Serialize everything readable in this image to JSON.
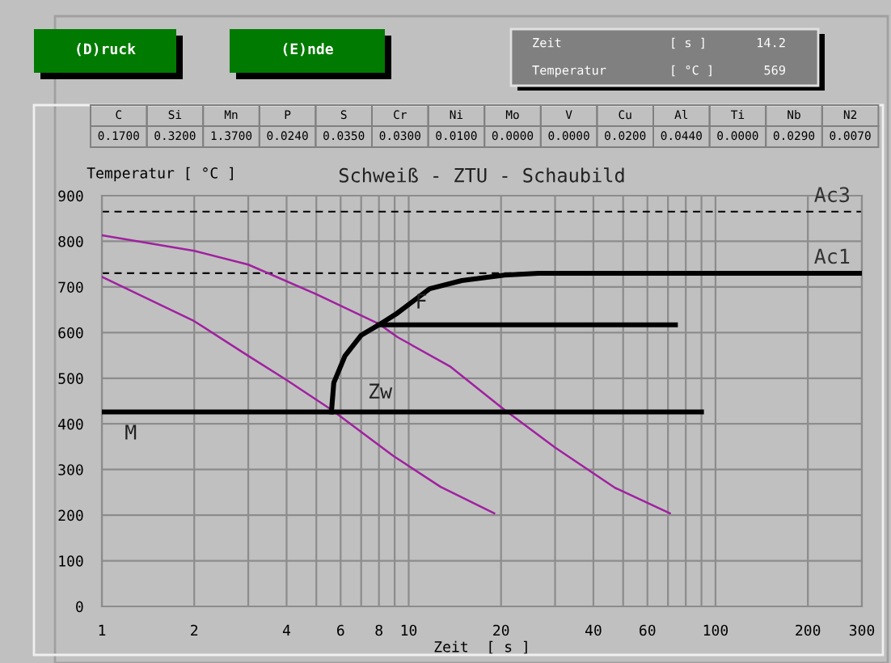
{
  "chart_data": {
    "type": "line",
    "title": "Schweiß - ZTU - Schaubild",
    "xlabel": "Zeit  [ s ]",
    "ylabel": "Temperatur [ °C ]",
    "log": "x",
    "xlim": [
      1,
      300
    ],
    "ylim": [
      0,
      900
    ],
    "xticks": [
      1,
      2,
      {
        "value": 3,
        "label": null
      },
      4,
      {
        "value": 5,
        "label": null
      },
      6,
      {
        "value": 7,
        "label": null
      },
      8,
      {
        "value": 9,
        "label": null
      },
      10,
      20,
      {
        "value": 30,
        "label": null
      },
      40,
      {
        "value": 50,
        "label": null
      },
      60,
      {
        "value": 70,
        "label": null
      },
      {
        "value": 80,
        "label": null
      },
      {
        "value": 90,
        "label": null
      },
      100,
      200,
      300
    ],
    "yticks": [
      0,
      100,
      200,
      300,
      400,
      500,
      600,
      700,
      800,
      900
    ],
    "grid": true,
    "marker": "none",
    "series": [
      {
        "color": "#a020a0",
        "x": [
          1,
          2,
          3,
          5,
          8,
          9.2,
          13.7,
          20.5,
          30,
          47,
          71
        ],
        "values": [
          813,
          779,
          749,
          684,
          619,
          590,
          525,
          431,
          348,
          260,
          204
        ]
      },
      {
        "color": "#a020a0",
        "x": [
          1,
          2,
          3,
          4,
          5.6,
          8.9,
          12.7,
          19
        ],
        "values": [
          722,
          625,
          549,
          496,
          431,
          330,
          262,
          204
        ]
      },
      {
        "color": "#000000",
        "x": [
          1,
          90
        ],
        "values": [
          426,
          426
        ]
      },
      {
        "color": "#000000",
        "x": [
          5.6,
          5.7,
          6.2,
          7.0,
          8.0,
          9.2,
          11.7,
          14.9,
          20.5,
          26.5,
          300
        ],
        "values": [
          426,
          490,
          549,
          594,
          617,
          643,
          696,
          714,
          726,
          730,
          730
        ]
      },
      {
        "color": "#000000",
        "x": [
          8.0,
          74
        ],
        "values": [
          617,
          617
        ]
      }
    ],
    "ref_lines": [
      {
        "axis": "y",
        "value": 865,
        "label": "Ac3",
        "line_style": "dashed",
        "color": "#000000"
      },
      {
        "axis": "y",
        "value": 730,
        "label": "Ac1",
        "line_style": "dashed",
        "color": "#000000"
      }
    ],
    "annotations": [
      "M",
      "Zw",
      {
        "text": "F",
        "x": 10.5,
        "y": 665
      },
      "(D)ruck",
      "(E)nde",
      "Zeit",
      "[ s ]",
      "14.2",
      "Temperatur",
      "[ °C ]",
      "569",
      "C",
      "Si",
      "Mn",
      "P",
      "S",
      "Cr",
      "Ni",
      "Mo",
      "V",
      "Cu",
      "Al",
      "Ti",
      "Nb",
      "N2",
      "0.1700",
      "0.3200",
      "1.3700",
      "0.0240",
      "0.0350",
      "0.0300",
      "0.0100",
      "0.0000",
      "0.0000",
      "0.0200",
      "0.0440",
      "0.0000",
      "0.0290",
      "0.0070"
    ]
  }
}
